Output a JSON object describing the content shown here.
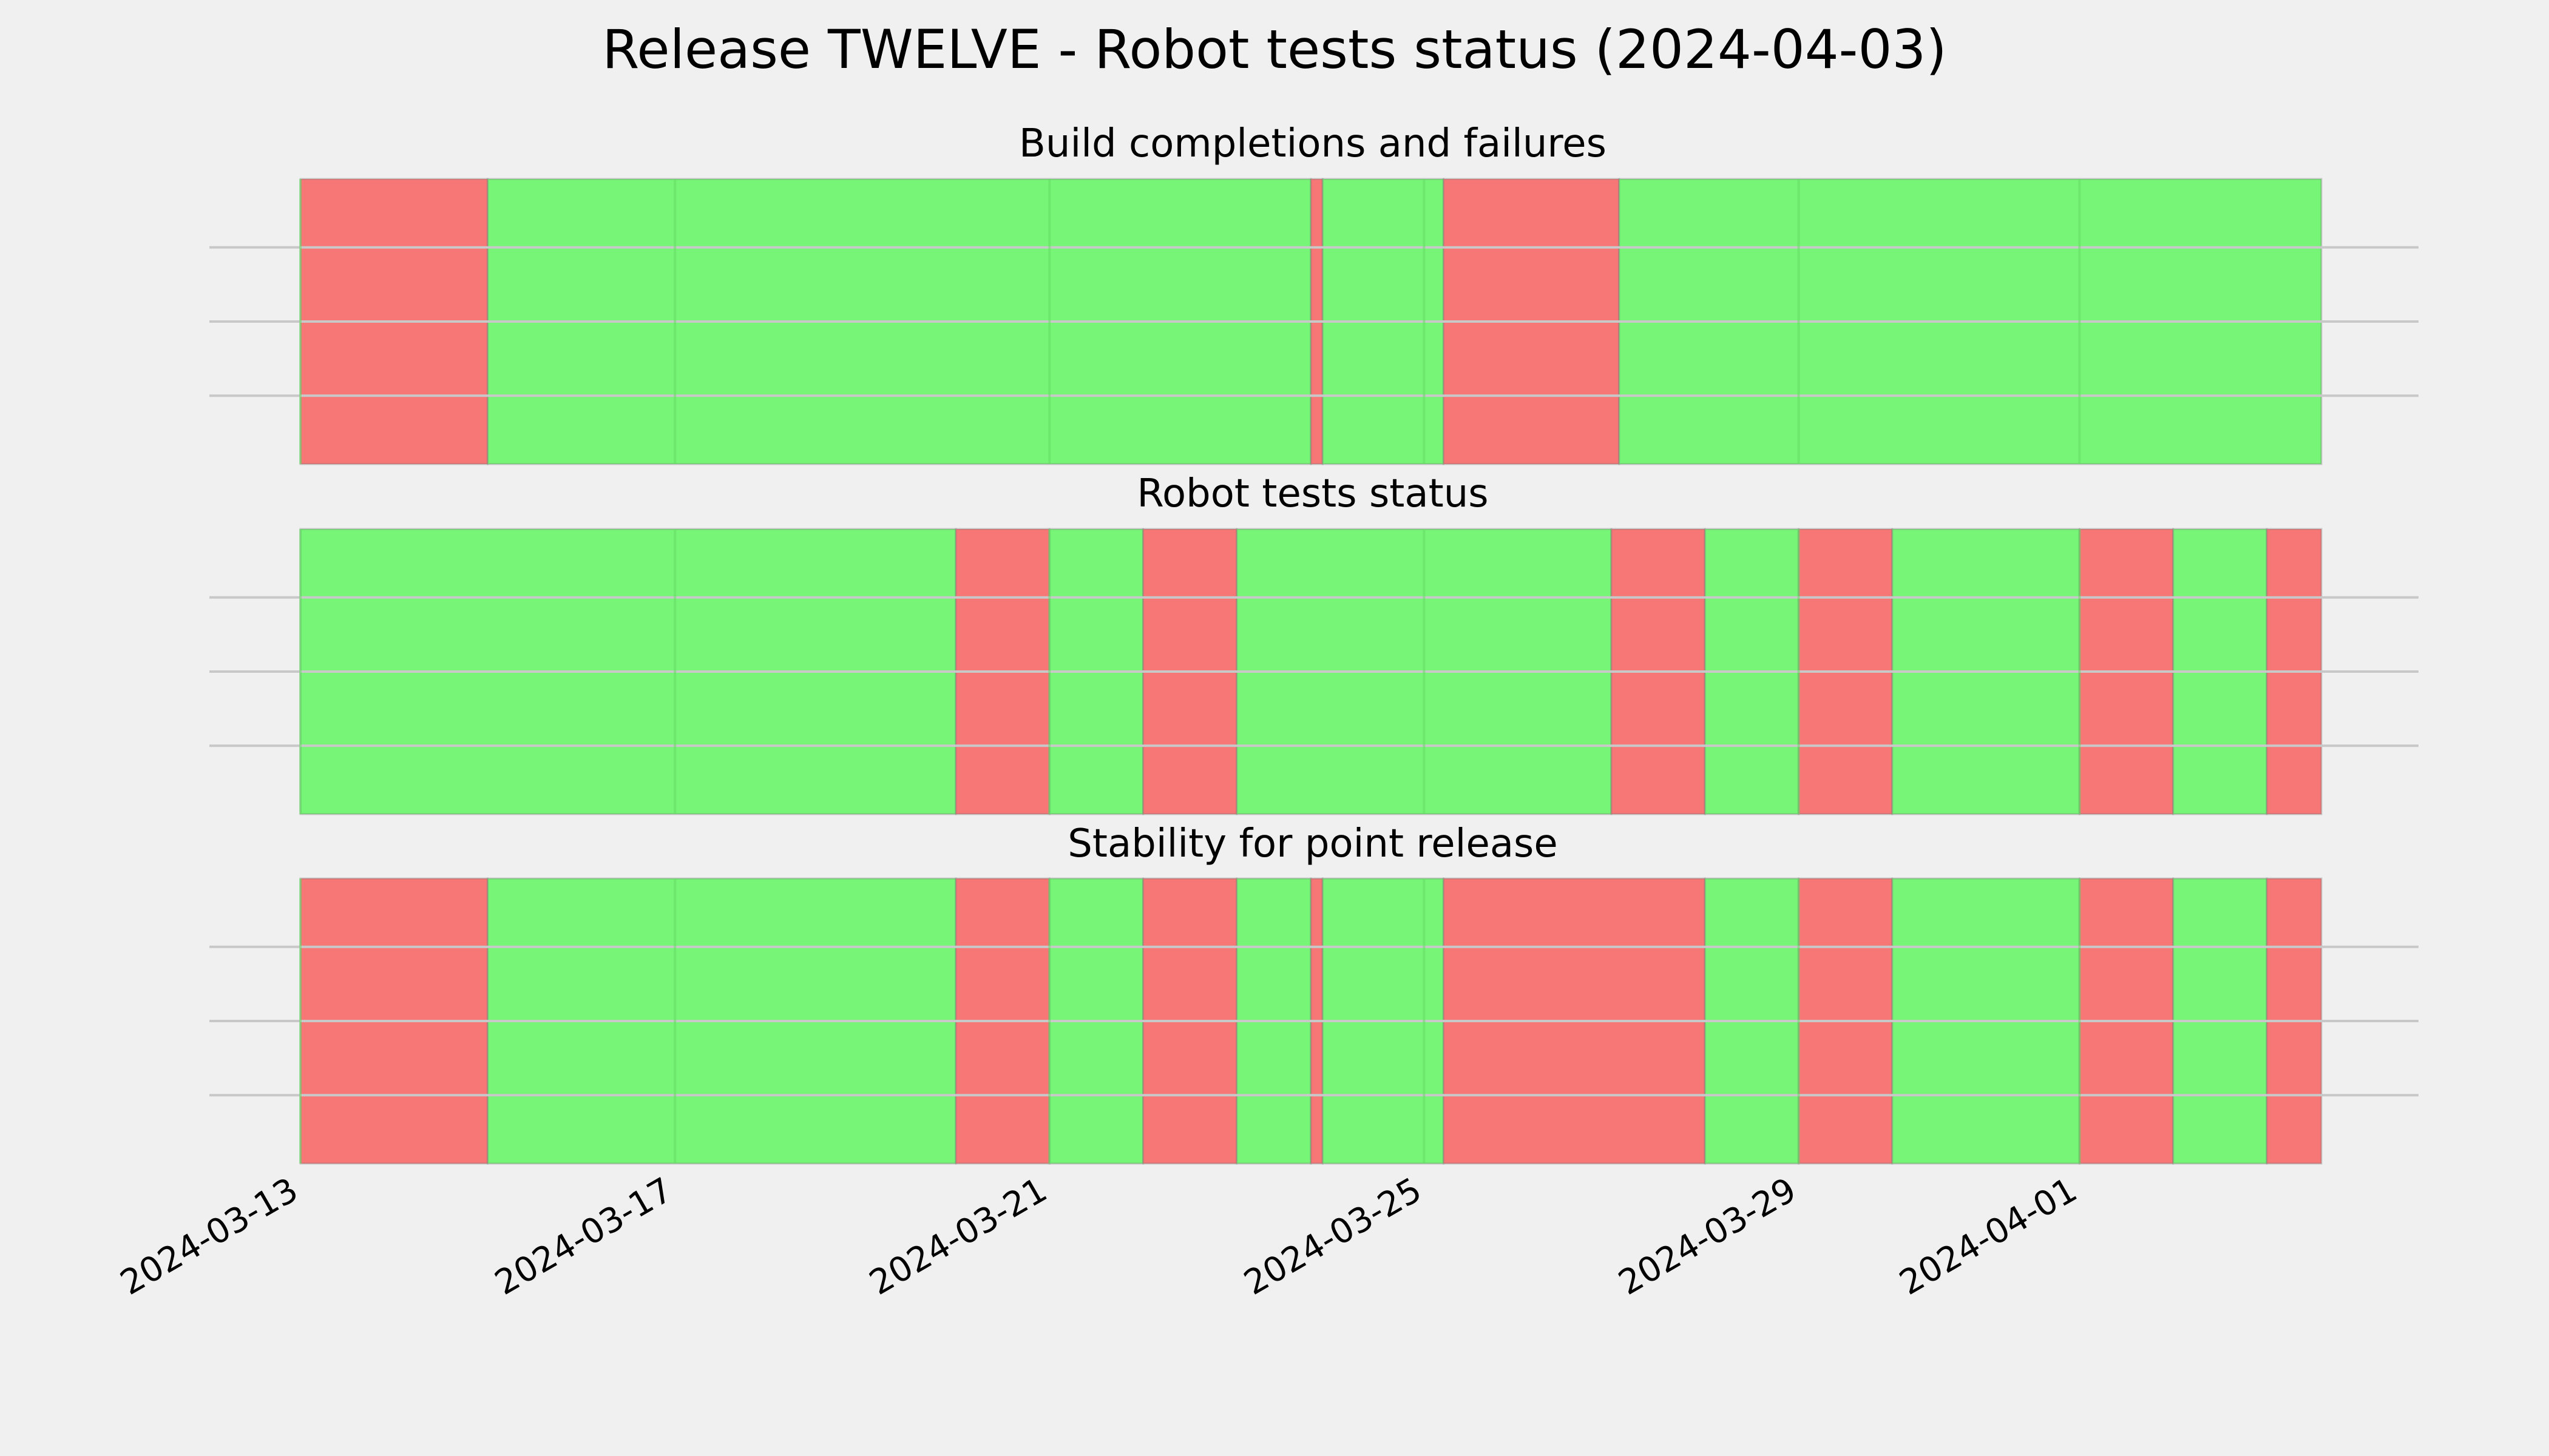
{
  "chart_data": {
    "type": "timeline",
    "title": "Release TWELVE - Robot tests status (2024-04-03)",
    "x_range": [
      "2024-03-13",
      "2024-04-03"
    ],
    "x_ticks": [
      "2024-03-13",
      "2024-03-17",
      "2024-03-21",
      "2024-03-25",
      "2024-03-29",
      "2024-04-01"
    ],
    "colors": {
      "pass": "#76f576",
      "fail": "#f77676"
    },
    "grid": true,
    "panels": [
      {
        "title": "Build completions and failures",
        "segments": [
          {
            "start": "2024-03-13 00:00",
            "end": "2024-03-15 00:00",
            "status": "fail"
          },
          {
            "start": "2024-03-15 00:00",
            "end": "2024-03-23 19:00",
            "status": "pass"
          },
          {
            "start": "2024-03-23 19:00",
            "end": "2024-03-23 22:00",
            "status": "fail"
          },
          {
            "start": "2024-03-23 22:00",
            "end": "2024-03-25 05:00",
            "status": "pass"
          },
          {
            "start": "2024-03-25 05:00",
            "end": "2024-03-27 02:00",
            "status": "fail"
          },
          {
            "start": "2024-03-27 02:00",
            "end": "2024-04-03 14:00",
            "status": "pass"
          }
        ]
      },
      {
        "title": "Robot tests status",
        "segments": [
          {
            "start": "2024-03-13 00:00",
            "end": "2024-03-20 00:00",
            "status": "pass"
          },
          {
            "start": "2024-03-20 00:00",
            "end": "2024-03-21 00:00",
            "status": "fail"
          },
          {
            "start": "2024-03-21 00:00",
            "end": "2024-03-22 00:00",
            "status": "pass"
          },
          {
            "start": "2024-03-22 00:00",
            "end": "2024-03-23 00:00",
            "status": "fail"
          },
          {
            "start": "2024-03-23 00:00",
            "end": "2024-03-27 00:00",
            "status": "pass"
          },
          {
            "start": "2024-03-27 00:00",
            "end": "2024-03-28 00:00",
            "status": "fail"
          },
          {
            "start": "2024-03-28 00:00",
            "end": "2024-03-29 00:00",
            "status": "pass"
          },
          {
            "start": "2024-03-29 00:00",
            "end": "2024-03-30 00:00",
            "status": "fail"
          },
          {
            "start": "2024-03-30 00:00",
            "end": "2024-04-01 00:00",
            "status": "pass"
          },
          {
            "start": "2024-04-01 00:00",
            "end": "2024-04-02 00:00",
            "status": "fail"
          },
          {
            "start": "2024-04-02 00:00",
            "end": "2024-04-03 00:00",
            "status": "pass"
          },
          {
            "start": "2024-04-03 00:00",
            "end": "2024-04-03 14:00",
            "status": "fail"
          }
        ]
      },
      {
        "title": "Stability for point release",
        "segments": [
          {
            "start": "2024-03-13 00:00",
            "end": "2024-03-15 00:00",
            "status": "fail"
          },
          {
            "start": "2024-03-15 00:00",
            "end": "2024-03-20 00:00",
            "status": "pass"
          },
          {
            "start": "2024-03-20 00:00",
            "end": "2024-03-21 00:00",
            "status": "fail"
          },
          {
            "start": "2024-03-21 00:00",
            "end": "2024-03-22 00:00",
            "status": "pass"
          },
          {
            "start": "2024-03-22 00:00",
            "end": "2024-03-23 00:00",
            "status": "fail"
          },
          {
            "start": "2024-03-23 00:00",
            "end": "2024-03-23 19:00",
            "status": "pass"
          },
          {
            "start": "2024-03-23 19:00",
            "end": "2024-03-23 22:00",
            "status": "fail"
          },
          {
            "start": "2024-03-23 22:00",
            "end": "2024-03-25 05:00",
            "status": "pass"
          },
          {
            "start": "2024-03-25 05:00",
            "end": "2024-03-28 00:00",
            "status": "fail"
          },
          {
            "start": "2024-03-28 00:00",
            "end": "2024-03-29 00:00",
            "status": "pass"
          },
          {
            "start": "2024-03-29 00:00",
            "end": "2024-03-30 00:00",
            "status": "fail"
          },
          {
            "start": "2024-03-30 00:00",
            "end": "2024-04-01 00:00",
            "status": "pass"
          },
          {
            "start": "2024-04-01 00:00",
            "end": "2024-04-02 00:00",
            "status": "fail"
          },
          {
            "start": "2024-04-02 00:00",
            "end": "2024-04-03 00:00",
            "status": "pass"
          },
          {
            "start": "2024-04-03 00:00",
            "end": "2024-04-03 14:00",
            "status": "fail"
          }
        ]
      }
    ]
  }
}
